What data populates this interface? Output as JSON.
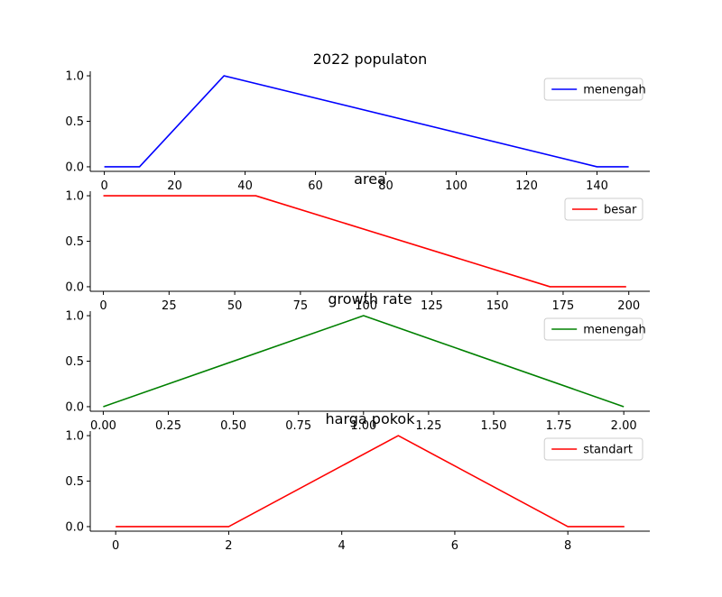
{
  "chart_data": [
    {
      "type": "line",
      "title": "2022 populaton",
      "xlim": [
        -4,
        155
      ],
      "ylim": [
        -0.05,
        1.05
      ],
      "xticks": [
        0,
        20,
        40,
        60,
        80,
        100,
        120,
        140
      ],
      "xtick_labels": [
        "0",
        "20",
        "40",
        "60",
        "80",
        "100",
        "120",
        "140"
      ],
      "yticks": [
        0.0,
        0.5,
        1.0
      ],
      "ytick_labels": [
        "0.0",
        "0.5",
        "1.0"
      ],
      "legend_position": "upper-right",
      "series": [
        {
          "name": "menengah",
          "color": "#0000ff",
          "x": [
            0,
            10,
            34,
            140,
            149
          ],
          "y": [
            0,
            0,
            1,
            0,
            0
          ]
        }
      ]
    },
    {
      "type": "line",
      "title": "area",
      "xlim": [
        -5,
        208
      ],
      "ylim": [
        -0.05,
        1.05
      ],
      "xticks": [
        0,
        25,
        50,
        75,
        100,
        125,
        150,
        175,
        200
      ],
      "xtick_labels": [
        "0",
        "25",
        "50",
        "75",
        "100",
        "125",
        "150",
        "175",
        "200"
      ],
      "yticks": [
        0.0,
        0.5,
        1.0
      ],
      "ytick_labels": [
        "0.0",
        "0.5",
        "1.0"
      ],
      "legend_position": "upper-right",
      "series": [
        {
          "name": "besar",
          "color": "#ff0000",
          "x": [
            0,
            58,
            170,
            199
          ],
          "y": [
            1,
            1,
            0,
            0
          ]
        }
      ]
    },
    {
      "type": "line",
      "title": "growth rate",
      "xlim": [
        -0.05,
        2.1
      ],
      "ylim": [
        -0.05,
        1.05
      ],
      "xticks": [
        0,
        0.25,
        0.5,
        0.75,
        1.0,
        1.25,
        1.5,
        1.75,
        2.0
      ],
      "xtick_labels": [
        "0.00",
        "0.25",
        "0.50",
        "0.75",
        "1.00",
        "1.25",
        "1.50",
        "1.75",
        "2.00"
      ],
      "yticks": [
        0.0,
        0.5,
        1.0
      ],
      "ytick_labels": [
        "0.0",
        "0.5",
        "1.0"
      ],
      "legend_position": "upper-right",
      "series": [
        {
          "name": "menengah",
          "color": "#008000",
          "x": [
            0,
            1,
            2
          ],
          "y": [
            0,
            1,
            0
          ]
        }
      ]
    },
    {
      "type": "line",
      "title": "harga pokok",
      "xlim": [
        -0.45,
        9.45
      ],
      "ylim": [
        -0.05,
        1.05
      ],
      "xticks": [
        0,
        2,
        4,
        6,
        8
      ],
      "xtick_labels": [
        "0",
        "2",
        "4",
        "6",
        "8"
      ],
      "yticks": [
        0.0,
        0.5,
        1.0
      ],
      "ytick_labels": [
        "0.0",
        "0.5",
        "1.0"
      ],
      "legend_position": "upper-right",
      "series": [
        {
          "name": "standart",
          "color": "#ff0000",
          "x": [
            0,
            2,
            5,
            8,
            9
          ],
          "y": [
            0,
            0,
            1,
            0,
            0
          ]
        }
      ]
    }
  ]
}
